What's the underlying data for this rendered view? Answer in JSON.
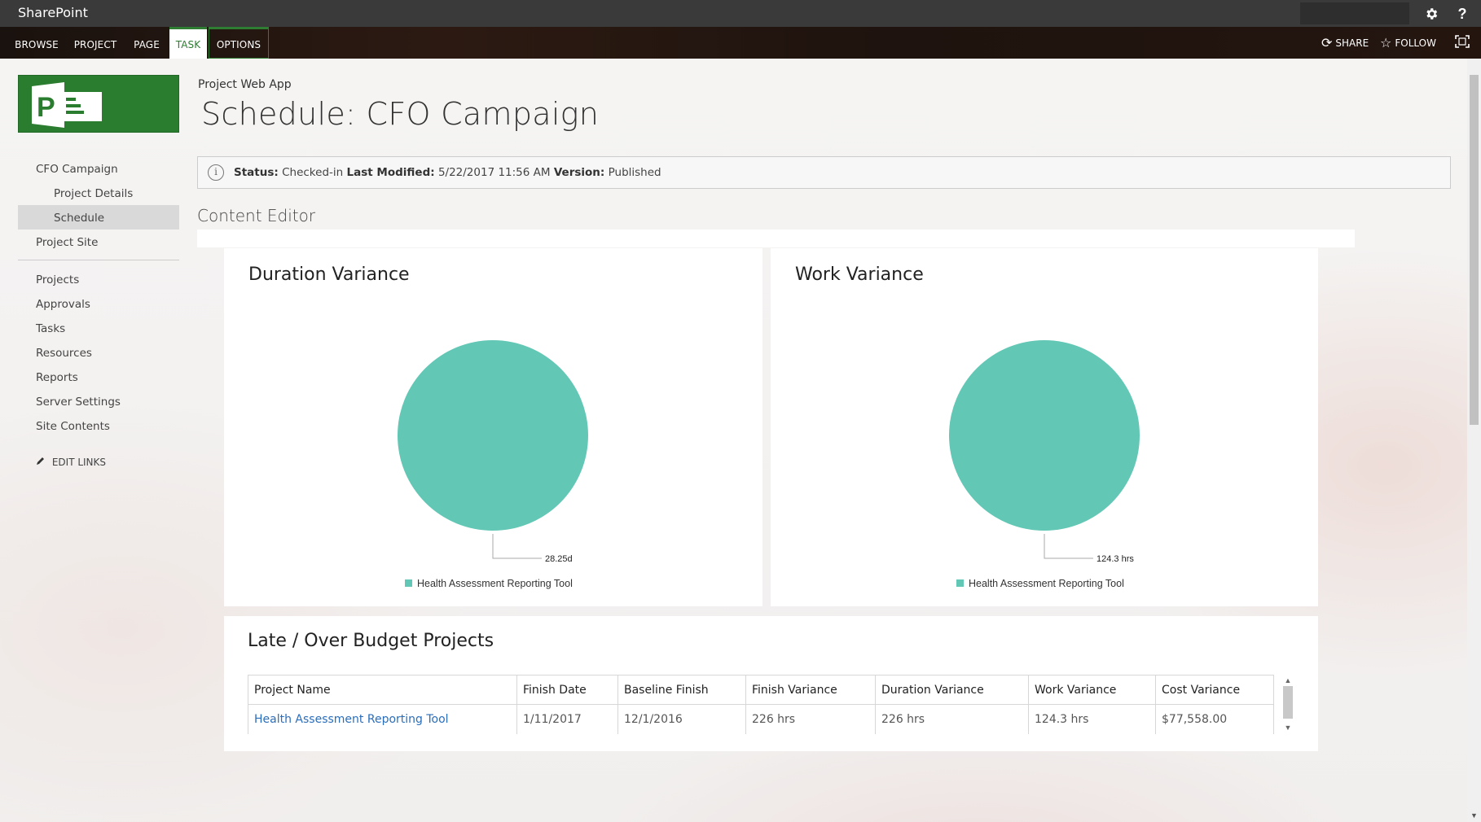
{
  "suite": {
    "brand": "SharePoint",
    "settings_icon": "gear-icon",
    "help_icon": "help-icon",
    "help_glyph": "?"
  },
  "ribbon": {
    "tabs": [
      {
        "label": "BROWSE"
      },
      {
        "label": "PROJECT"
      },
      {
        "label": "PAGE"
      },
      {
        "label": "TASK"
      },
      {
        "label": "OPTIONS"
      }
    ],
    "share_label": "SHARE",
    "follow_label": "FOLLOW"
  },
  "nav": {
    "items": [
      {
        "label": "CFO Campaign"
      },
      {
        "label": "Project Details"
      },
      {
        "label": "Schedule"
      },
      {
        "label": "Project Site"
      },
      {
        "label": "Projects"
      },
      {
        "label": "Approvals"
      },
      {
        "label": "Tasks"
      },
      {
        "label": "Resources"
      },
      {
        "label": "Reports"
      },
      {
        "label": "Server Settings"
      },
      {
        "label": "Site Contents"
      }
    ],
    "edit_links": "EDIT LINKS"
  },
  "header": {
    "site_title": "Project Web App",
    "page_title": "Schedule: CFO Campaign"
  },
  "status": {
    "status_label": "Status:",
    "status_value": "Checked-in",
    "modified_label": "Last Modified:",
    "modified_value": "5/22/2017 11:56 AM",
    "version_label": "Version:",
    "version_value": "Published"
  },
  "webpart": {
    "title": "Content Editor"
  },
  "chart_data": [
    {
      "type": "pie",
      "title": "Duration Variance",
      "slices": [
        {
          "label": "Health Assessment Reporting Tool",
          "value": 28.25,
          "display": "28.25d"
        }
      ],
      "legend": "bottom"
    },
    {
      "type": "pie",
      "title": "Work Variance",
      "slices": [
        {
          "label": "Health Assessment Reporting Tool",
          "value": 124.3,
          "display": "124.3 hrs"
        }
      ],
      "legend": "bottom"
    }
  ],
  "colors": {
    "pie": "#62c7b5",
    "brand_green": "#2a7c2e",
    "link": "#2a6ebb"
  },
  "late_table": {
    "title": "Late / Over Budget Projects",
    "columns": [
      "Project Name",
      "Finish Date",
      "Baseline Finish",
      "Finish Variance",
      "Duration Variance",
      "Work Variance",
      "Cost Variance"
    ],
    "rows": [
      [
        "Health Assessment Reporting Tool",
        "1/11/2017",
        "12/1/2016",
        "226 hrs",
        "226 hrs",
        "124.3 hrs",
        "$77,558.00"
      ]
    ]
  }
}
